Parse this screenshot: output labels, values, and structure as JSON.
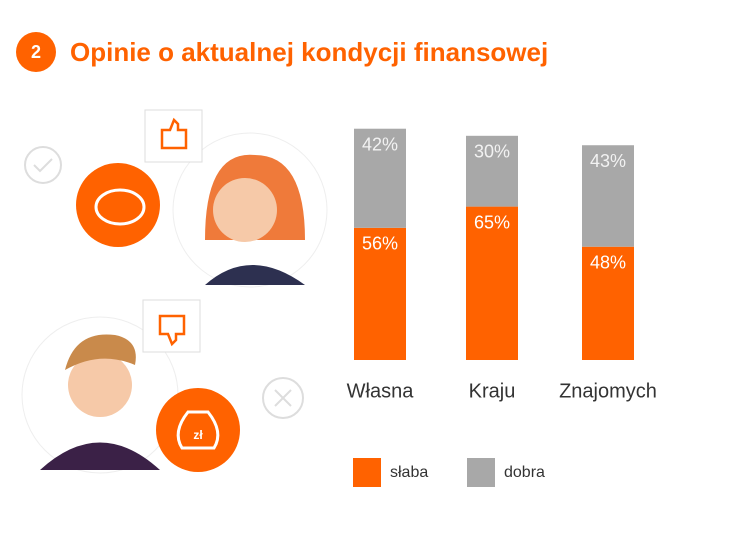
{
  "badge": "2",
  "icon_label": "zł",
  "chart_data": {
    "type": "stacked_bar",
    "title": "Opinie o aktualnej kondycji finansowej",
    "categories": [
      "Własna",
      "Kraju",
      "Znajomych"
    ],
    "series": [
      {
        "name": "słaba",
        "color": "#ff6200",
        "values": [
          56,
          65,
          48
        ],
        "value_labels": [
          "56%",
          "65%",
          "48%"
        ]
      },
      {
        "name": "dobra",
        "color": "#a8a8a8",
        "values": [
          42,
          30,
          43
        ],
        "value_labels": [
          "42%",
          "30%",
          "43%"
        ]
      }
    ]
  }
}
